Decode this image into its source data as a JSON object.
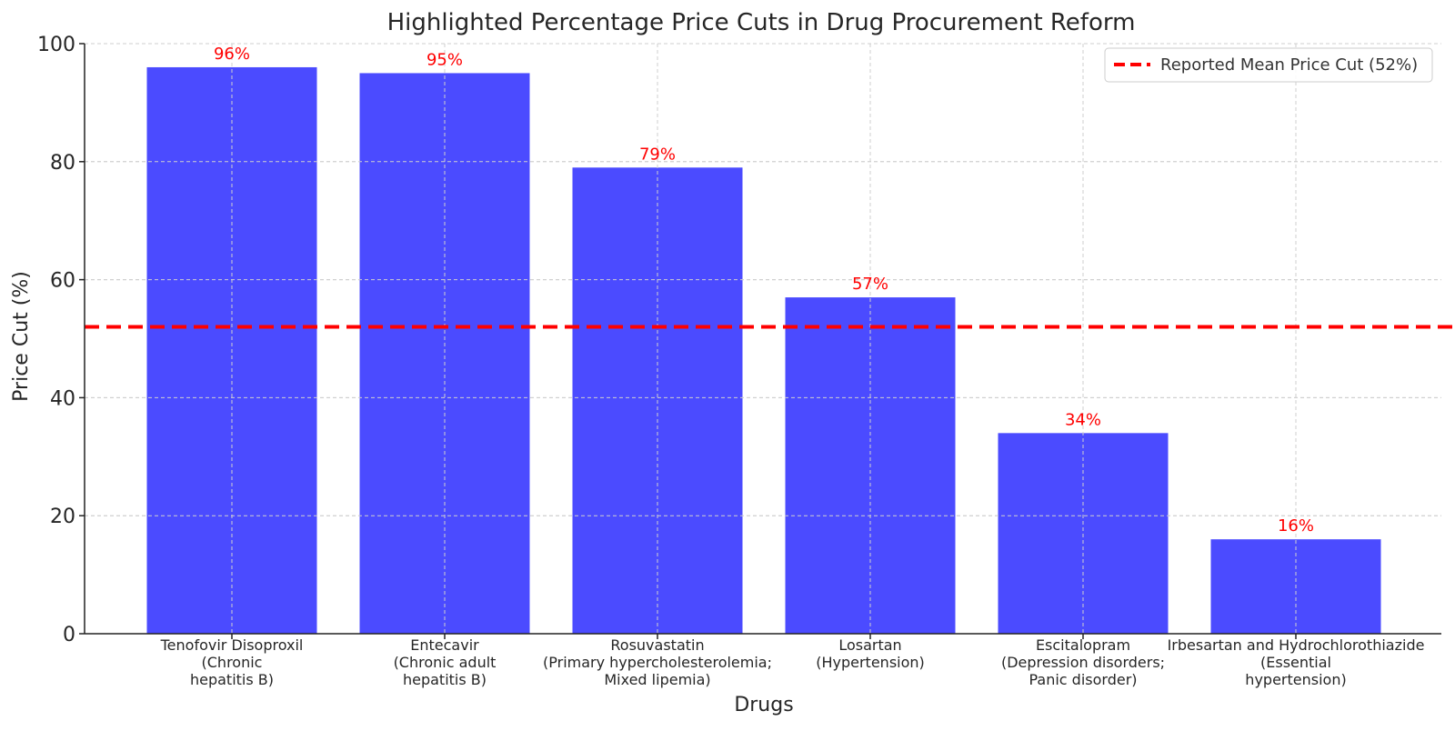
{
  "chart_data": {
    "type": "bar",
    "title": "Highlighted Percentage Price Cuts in Drug Procurement Reform",
    "xlabel": "Drugs",
    "ylabel": "Price Cut (%)",
    "ylim": [
      0,
      100
    ],
    "yticks": [
      "0",
      "20",
      "40",
      "60",
      "80",
      "100"
    ],
    "grid": true,
    "legend_position": "top-right",
    "categories": [
      [
        "Tenofovir Disoproxil",
        "(Chronic",
        "hepatitis B)"
      ],
      [
        "Entecavir",
        "(Chronic adult",
        "hepatitis B)"
      ],
      [
        "Rosuvastatin",
        "(Primary hypercholesterolemia;",
        "Mixed lipemia)"
      ],
      [
        "Losartan",
        "(Hypertension)"
      ],
      [
        "Escitalopram",
        "(Depression disorders;",
        "Panic disorder)"
      ],
      [
        "Irbesartan and Hydrochlorothiazide",
        "(Essential",
        "hypertension)"
      ]
    ],
    "values": [
      96,
      95,
      79,
      57,
      34,
      16
    ],
    "data_labels": [
      "96%",
      "95%",
      "79%",
      "57%",
      "34%",
      "16%"
    ],
    "reference_line": {
      "value": 52,
      "label": "Reported Mean Price Cut (52%)",
      "style": "dashed",
      "color": "#ff0000"
    },
    "colors": {
      "bar": "#4b4bff",
      "bar_label": "#ff0000",
      "axis": "#222222",
      "grid": "#cfcfcf"
    }
  }
}
